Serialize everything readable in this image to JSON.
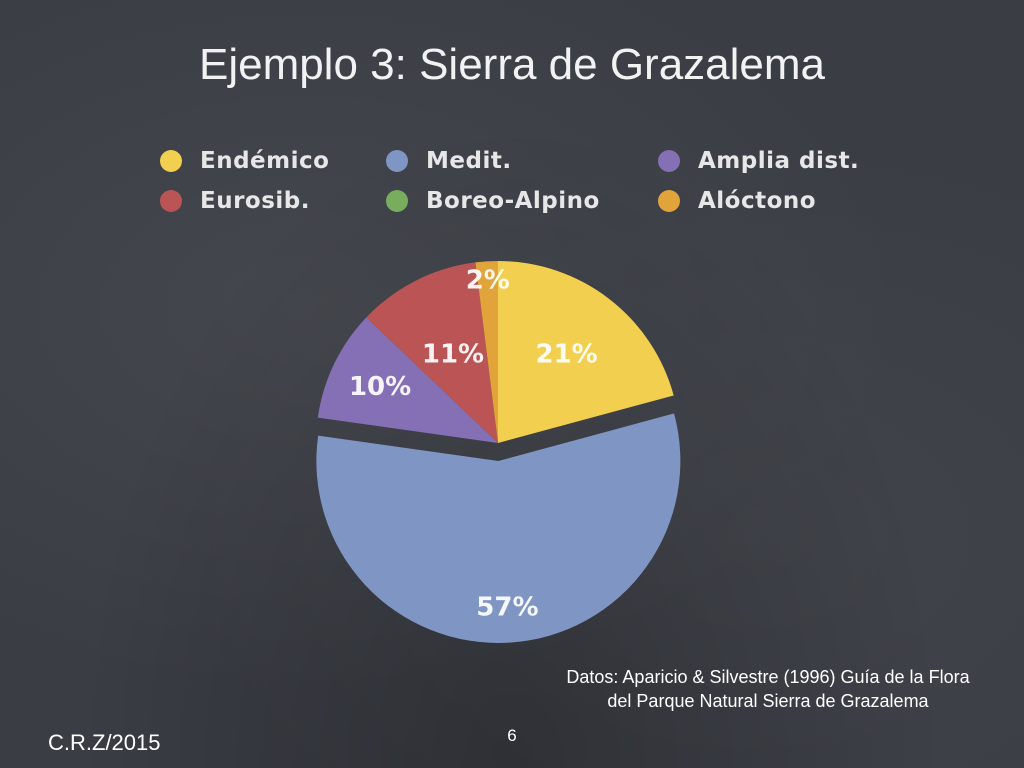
{
  "slide": {
    "title": "Ejemplo 3: Sierra de Grazalema",
    "source_line1": "Datos: Aparicio & Silvestre (1996) Guía de la Flora",
    "source_line2": "del Parque Natural Sierra de Grazalema",
    "author": "C.R.Z/2015",
    "page_number": "6"
  },
  "chart_data": {
    "type": "pie",
    "title": "",
    "legend_placement": "top",
    "slices": [
      {
        "name": "Endémico",
        "value": 21,
        "label": "21%",
        "color": "#f2cf4e"
      },
      {
        "name": "Medit.",
        "value": 57,
        "label": "57%",
        "color": "#7f95c3"
      },
      {
        "name": "Amplia dist.",
        "value": 10,
        "label": "10%",
        "color": "#8570b5"
      },
      {
        "name": "Eurosib.",
        "value": 11,
        "label": "11%",
        "color": "#bb5555"
      },
      {
        "name": "Boreo-Alpino",
        "value": 0,
        "label": "",
        "color": "#79ad5e"
      },
      {
        "name": "Alóctono",
        "value": 2,
        "label": "2%",
        "color": "#e0a43b"
      }
    ],
    "exploded_slice": "Medit."
  }
}
